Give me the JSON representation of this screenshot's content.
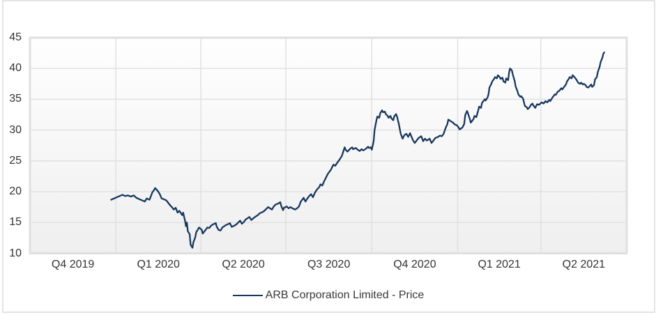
{
  "widget": {
    "background": "#ffffff",
    "border_color": "#e4e4e4"
  },
  "style": {
    "grid_color": "#dfdfdf",
    "plot_background_top": "#fefefe",
    "plot_background_bottom": "#efefef",
    "tick_text_color": "#333333",
    "series_color": "#17375e"
  },
  "legend": {
    "label": "ARB Corporation Limited - Price"
  },
  "chart_data": {
    "type": "line",
    "title": "",
    "xlabel": "",
    "ylabel": "",
    "grid": true,
    "legend_position": "bottom-center",
    "x_axis": {
      "unit": "days since 2019-10-01",
      "range": [
        0,
        639
      ],
      "quarter_gridline_days": [
        92,
        183,
        274,
        366,
        458,
        547
      ],
      "ticks": [
        {
          "label": "Q4 2019",
          "day": 46
        },
        {
          "label": "Q1 2020",
          "day": 137.5
        },
        {
          "label": "Q2 2020",
          "day": 228.5
        },
        {
          "label": "Q3 2020",
          "day": 320
        },
        {
          "label": "Q4 2020",
          "day": 412
        },
        {
          "label": "Q1 2021",
          "day": 502.5
        },
        {
          "label": "Q2 2021",
          "day": 593
        }
      ]
    },
    "y_axis": {
      "range": [
        10,
        45
      ],
      "ticks": [
        10,
        15,
        20,
        25,
        30,
        35,
        40,
        45
      ]
    },
    "series": [
      {
        "name": "ARB Corporation Limited - Price",
        "color": "#17375e",
        "points": [
          [
            87,
            18.7
          ],
          [
            90,
            18.9
          ],
          [
            93,
            19.1
          ],
          [
            96,
            19.3
          ],
          [
            99,
            19.5
          ],
          [
            102,
            19.3
          ],
          [
            105,
            19.4
          ],
          [
            108,
            19.2
          ],
          [
            111,
            19.4
          ],
          [
            114,
            19.0
          ],
          [
            117,
            18.8
          ],
          [
            120,
            18.6
          ],
          [
            123,
            18.4
          ],
          [
            125,
            18.9
          ],
          [
            128,
            18.7
          ],
          [
            131,
            19.9
          ],
          [
            133,
            20.3
          ],
          [
            134,
            20.6
          ],
          [
            137,
            20.1
          ],
          [
            139,
            19.6
          ],
          [
            141,
            18.9
          ],
          [
            143,
            18.8
          ],
          [
            146,
            18.6
          ],
          [
            148,
            18.2
          ],
          [
            150,
            17.8
          ],
          [
            152,
            17.5
          ],
          [
            154,
            17.1
          ],
          [
            156,
            17.4
          ],
          [
            158,
            16.6
          ],
          [
            160,
            16.9
          ],
          [
            163,
            16.2
          ],
          [
            164,
            16.6
          ],
          [
            166,
            15.3
          ],
          [
            167,
            14.4
          ],
          [
            168,
            15.0
          ],
          [
            169,
            13.6
          ],
          [
            171,
            13.1
          ],
          [
            172,
            11.4
          ],
          [
            174,
            10.9
          ],
          [
            175,
            11.8
          ],
          [
            177,
            12.6
          ],
          [
            178,
            13.4
          ],
          [
            180,
            13.9
          ],
          [
            181,
            14.2
          ],
          [
            184,
            13.8
          ],
          [
            185,
            13.2
          ],
          [
            187,
            13.6
          ],
          [
            189,
            14.0
          ],
          [
            190,
            14.2
          ],
          [
            192,
            14.1
          ],
          [
            194,
            14.5
          ],
          [
            196,
            14.7
          ],
          [
            199,
            14.9
          ],
          [
            200,
            14.3
          ],
          [
            202,
            13.8
          ],
          [
            204,
            13.7
          ],
          [
            206,
            14.2
          ],
          [
            208,
            14.4
          ],
          [
            210,
            14.6
          ],
          [
            213,
            14.8
          ],
          [
            214,
            14.9
          ],
          [
            216,
            14.3
          ],
          [
            219,
            14.5
          ],
          [
            221,
            14.7
          ],
          [
            223,
            15.0
          ],
          [
            225,
            15.3
          ],
          [
            227,
            14.8
          ],
          [
            229,
            15.1
          ],
          [
            231,
            15.5
          ],
          [
            234,
            15.8
          ],
          [
            235,
            15.9
          ],
          [
            237,
            15.4
          ],
          [
            240,
            15.8
          ],
          [
            242,
            16.0
          ],
          [
            244,
            16.2
          ],
          [
            246,
            16.5
          ],
          [
            249,
            16.7
          ],
          [
            251,
            16.9
          ],
          [
            253,
            17.2
          ],
          [
            255,
            17.5
          ],
          [
            257,
            17.3
          ],
          [
            259,
            17.1
          ],
          [
            261,
            17.6
          ],
          [
            263,
            17.9
          ],
          [
            266,
            18.1
          ],
          [
            268,
            18.3
          ],
          [
            269,
            17.7
          ],
          [
            271,
            17.0
          ],
          [
            272,
            17.4
          ],
          [
            275,
            17.6
          ],
          [
            277,
            17.3
          ],
          [
            279,
            17.5
          ],
          [
            281,
            17.3
          ],
          [
            284,
            17.1
          ],
          [
            286,
            17.3
          ],
          [
            288,
            17.6
          ],
          [
            290,
            18.4
          ],
          [
            293,
            19.0
          ],
          [
            295,
            18.4
          ],
          [
            297,
            18.9
          ],
          [
            299,
            19.3
          ],
          [
            301,
            19.6
          ],
          [
            303,
            19.1
          ],
          [
            305,
            19.8
          ],
          [
            307,
            20.3
          ],
          [
            310,
            20.8
          ],
          [
            311,
            21.2
          ],
          [
            313,
            21.0
          ],
          [
            315,
            21.7
          ],
          [
            317,
            22.3
          ],
          [
            319,
            22.9
          ],
          [
            322,
            23.5
          ],
          [
            324,
            24.1
          ],
          [
            325,
            24.4
          ],
          [
            327,
            24.2
          ],
          [
            329,
            24.7
          ],
          [
            331,
            25.1
          ],
          [
            334,
            25.8
          ],
          [
            335,
            26.3
          ],
          [
            337,
            27.2
          ],
          [
            338,
            26.8
          ],
          [
            340,
            26.5
          ],
          [
            343,
            27.0
          ],
          [
            345,
            27.2
          ],
          [
            346,
            26.9
          ],
          [
            349,
            27.1
          ],
          [
            351,
            26.8
          ],
          [
            353,
            26.6
          ],
          [
            355,
            26.9
          ],
          [
            357,
            26.7
          ],
          [
            360,
            27.0
          ],
          [
            362,
            27.3
          ],
          [
            363,
            27.1
          ],
          [
            365,
            27.2
          ],
          [
            366,
            26.8
          ],
          [
            368,
            28.2
          ],
          [
            369,
            30.0
          ],
          [
            371,
            31.6
          ],
          [
            372,
            32.2
          ],
          [
            374,
            32.0
          ],
          [
            375,
            32.7
          ],
          [
            377,
            33.2
          ],
          [
            378,
            32.9
          ],
          [
            380,
            33.0
          ],
          [
            381,
            32.6
          ],
          [
            383,
            32.3
          ],
          [
            384,
            32.0
          ],
          [
            386,
            32.3
          ],
          [
            387,
            31.9
          ],
          [
            389,
            31.6
          ],
          [
            390,
            32.2
          ],
          [
            392,
            32.6
          ],
          [
            393,
            32.2
          ],
          [
            395,
            31.0
          ],
          [
            397,
            29.4
          ],
          [
            399,
            28.6
          ],
          [
            401,
            29.2
          ],
          [
            403,
            29.4
          ],
          [
            405,
            28.9
          ],
          [
            407,
            29.5
          ],
          [
            410,
            28.4
          ],
          [
            412,
            27.9
          ],
          [
            414,
            28.3
          ],
          [
            416,
            28.7
          ],
          [
            419,
            29.0
          ],
          [
            421,
            28.2
          ],
          [
            423,
            28.6
          ],
          [
            425,
            28.3
          ],
          [
            428,
            28.6
          ],
          [
            430,
            27.9
          ],
          [
            432,
            28.3
          ],
          [
            434,
            28.7
          ],
          [
            437,
            28.9
          ],
          [
            439,
            29.1
          ],
          [
            441,
            29.0
          ],
          [
            443,
            29.4
          ],
          [
            445,
            30.3
          ],
          [
            447,
            31.0
          ],
          [
            448,
            31.7
          ],
          [
            451,
            31.4
          ],
          [
            453,
            31.2
          ],
          [
            455,
            30.9
          ],
          [
            457,
            30.8
          ],
          [
            459,
            30.4
          ],
          [
            460,
            30.1
          ],
          [
            463,
            30.4
          ],
          [
            465,
            31.0
          ],
          [
            466,
            32.4
          ],
          [
            468,
            33.1
          ],
          [
            469,
            32.7
          ],
          [
            471,
            31.8
          ],
          [
            472,
            31.2
          ],
          [
            475,
            31.8
          ],
          [
            476,
            32.3
          ],
          [
            478,
            32.1
          ],
          [
            480,
            33.2
          ],
          [
            481,
            33.8
          ],
          [
            483,
            33.6
          ],
          [
            484,
            34.4
          ],
          [
            487,
            35.0
          ],
          [
            488,
            34.8
          ],
          [
            490,
            35.3
          ],
          [
            491,
            35.8
          ],
          [
            492,
            36.9
          ],
          [
            494,
            37.5
          ],
          [
            495,
            37.9
          ],
          [
            497,
            38.3
          ],
          [
            498,
            38.6
          ],
          [
            500,
            38.4
          ],
          [
            501,
            38.9
          ],
          [
            503,
            38.6
          ],
          [
            504,
            38.3
          ],
          [
            506,
            38.5
          ],
          [
            507,
            37.9
          ],
          [
            509,
            37.7
          ],
          [
            510,
            38.4
          ],
          [
            512,
            38.1
          ],
          [
            513,
            39.3
          ],
          [
            514,
            40.0
          ],
          [
            516,
            39.7
          ],
          [
            517,
            39.0
          ],
          [
            519,
            38.0
          ],
          [
            520,
            37.1
          ],
          [
            522,
            36.3
          ],
          [
            523,
            35.8
          ],
          [
            525,
            35.4
          ],
          [
            526,
            35.5
          ],
          [
            528,
            35.1
          ],
          [
            529,
            34.5
          ],
          [
            530,
            33.9
          ],
          [
            532,
            33.7
          ],
          [
            533,
            33.4
          ],
          [
            535,
            33.7
          ],
          [
            536,
            34.0
          ],
          [
            538,
            34.3
          ],
          [
            539,
            34.0
          ],
          [
            541,
            33.6
          ],
          [
            543,
            34.2
          ],
          [
            545,
            34.1
          ],
          [
            548,
            34.5
          ],
          [
            550,
            34.3
          ],
          [
            552,
            34.7
          ],
          [
            554,
            34.5
          ],
          [
            556,
            34.9
          ],
          [
            557,
            34.7
          ],
          [
            560,
            35.4
          ],
          [
            562,
            35.8
          ],
          [
            563,
            35.7
          ],
          [
            565,
            36.2
          ],
          [
            567,
            36.4
          ],
          [
            569,
            36.8
          ],
          [
            570,
            36.6
          ],
          [
            572,
            37.0
          ],
          [
            574,
            37.4
          ],
          [
            575,
            37.9
          ],
          [
            577,
            38.3
          ],
          [
            578,
            38.6
          ],
          [
            580,
            38.4
          ],
          [
            581,
            38.9
          ],
          [
            583,
            38.6
          ],
          [
            585,
            38.2
          ],
          [
            587,
            37.7
          ],
          [
            589,
            37.5
          ],
          [
            590,
            37.7
          ],
          [
            592,
            37.4
          ],
          [
            593,
            37.5
          ],
          [
            595,
            37.3
          ],
          [
            596,
            37.0
          ],
          [
            598,
            36.9
          ],
          [
            599,
            37.1
          ],
          [
            601,
            37.4
          ],
          [
            602,
            37.0
          ],
          [
            604,
            37.3
          ],
          [
            605,
            38.2
          ],
          [
            607,
            38.6
          ],
          [
            608,
            39.4
          ],
          [
            610,
            40.3
          ],
          [
            611,
            41.0
          ],
          [
            613,
            41.8
          ],
          [
            614,
            42.4
          ],
          [
            615,
            42.6
          ]
        ]
      }
    ]
  }
}
